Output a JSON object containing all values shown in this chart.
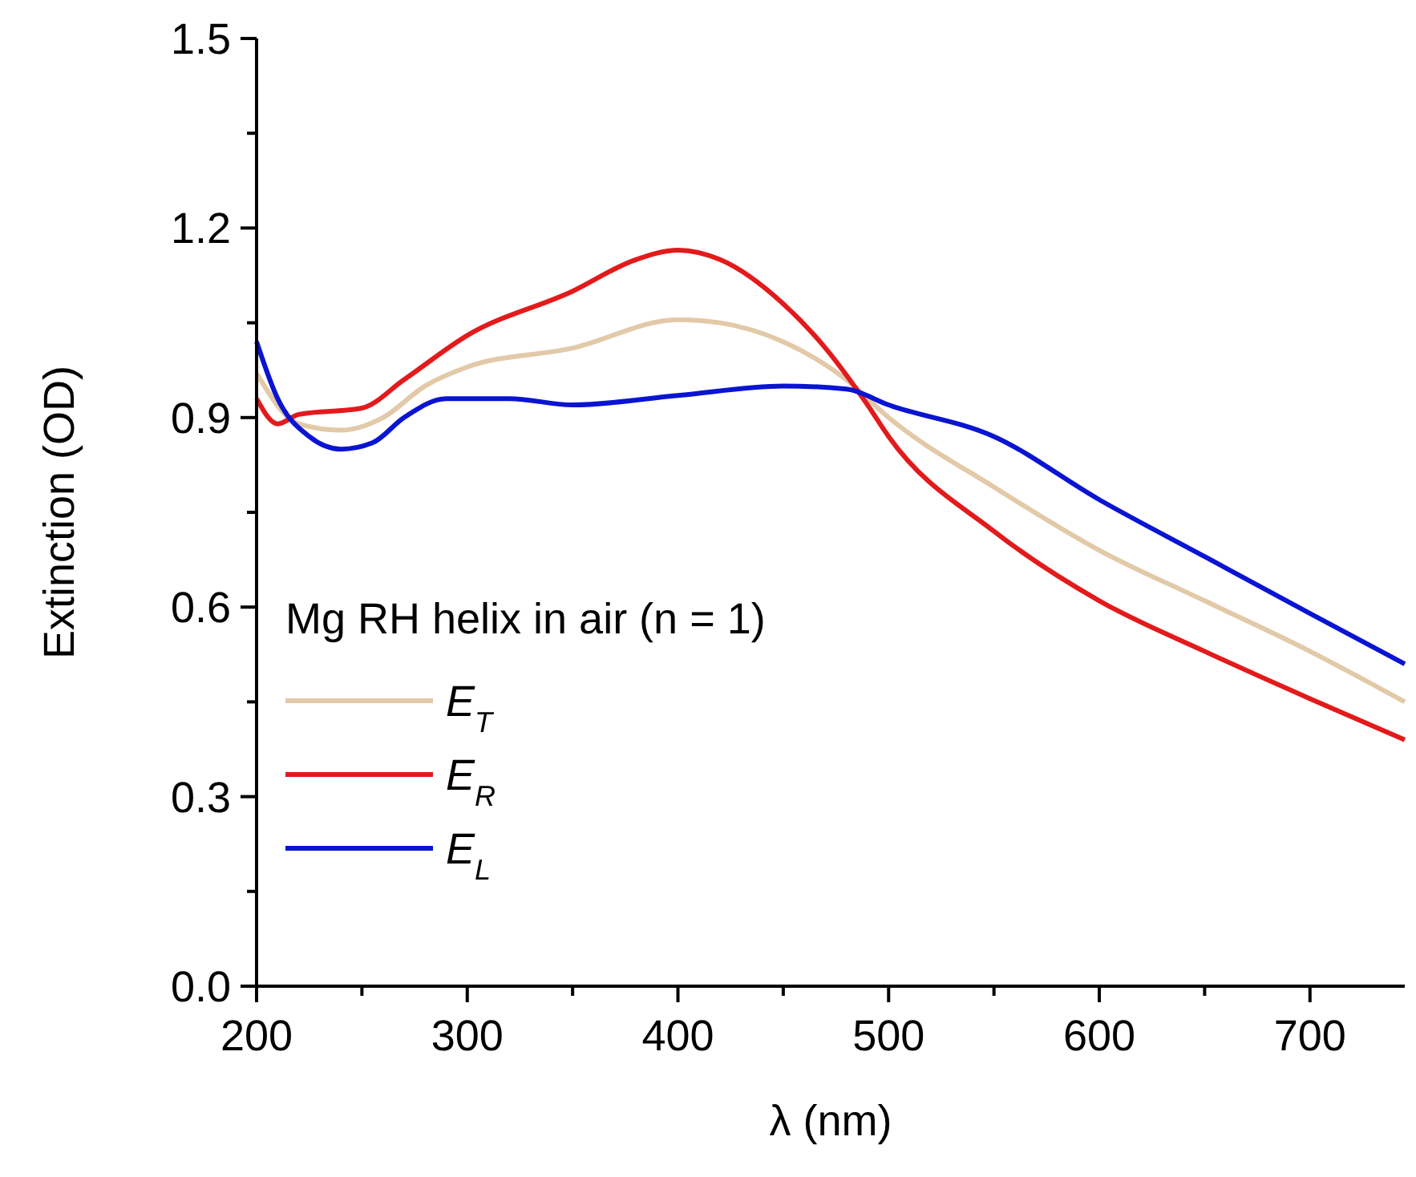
{
  "chart_data": {
    "type": "line",
    "xlabel": "λ (nm)",
    "ylabel": "Extinction (OD)",
    "legend_title": "Mg RH helix in air (n = 1)",
    "legend": "bottom left",
    "grid": false,
    "marker": "none",
    "line_style": "solid",
    "xlim": [
      200,
      745
    ],
    "xticks": [
      200,
      {
        "value": 250,
        "label": null
      },
      300,
      {
        "value": 350,
        "label": null
      },
      400,
      {
        "value": 450,
        "label": null
      },
      500,
      {
        "value": 550,
        "label": null
      },
      600,
      {
        "value": 650,
        "label": null
      },
      700
    ],
    "ylim": [
      0,
      1.5
    ],
    "yticks": [
      "0.0",
      {
        "value": 0.15,
        "label": null
      },
      0.3,
      {
        "value": 0.45,
        "label": null
      },
      0.6,
      {
        "value": 0.75,
        "label": null
      },
      0.9,
      {
        "value": 1.05,
        "label": null
      },
      1.2,
      {
        "value": 1.35,
        "label": null
      },
      1.5
    ],
    "series": [
      {
        "name": "E$_{T}$",
        "color": "#e2c9a8",
        "x": [
          200,
          220,
          240,
          260,
          280,
          300,
          350,
          400,
          420,
          450,
          480,
          500,
          550,
          600,
          650,
          700,
          745
        ],
        "values": [
          0.97,
          0.89,
          0.88,
          0.9,
          0.95,
          0.98,
          1.01,
          1.055,
          1.05,
          1.02,
          0.96,
          0.9,
          0.79,
          0.69,
          0.61,
          0.53,
          0.45
        ]
      },
      {
        "name": "E$_{R}$",
        "color": "#e31a1c",
        "x": [
          200,
          210,
          220,
          250,
          270,
          300,
          350,
          380,
          400,
          420,
          450,
          470,
          490,
          500,
          550,
          600,
          650,
          700,
          745
        ],
        "values": [
          0.93,
          0.89,
          0.905,
          0.915,
          0.96,
          1.03,
          1.1,
          1.15,
          1.165,
          1.15,
          1.08,
          1.01,
          0.92,
          0.87,
          0.72,
          0.61,
          0.53,
          0.455,
          0.39
        ]
      },
      {
        "name": "E$_{L}$",
        "color": "#0a14d2",
        "x": [
          200,
          210,
          225,
          240,
          255,
          270,
          290,
          320,
          350,
          400,
          450,
          480,
          500,
          550,
          600,
          650,
          700,
          745
        ],
        "values": [
          1.02,
          0.93,
          0.87,
          0.85,
          0.86,
          0.9,
          0.93,
          0.93,
          0.92,
          0.935,
          0.95,
          0.945,
          0.92,
          0.87,
          0.77,
          0.68,
          0.59,
          0.51
        ]
      }
    ]
  }
}
